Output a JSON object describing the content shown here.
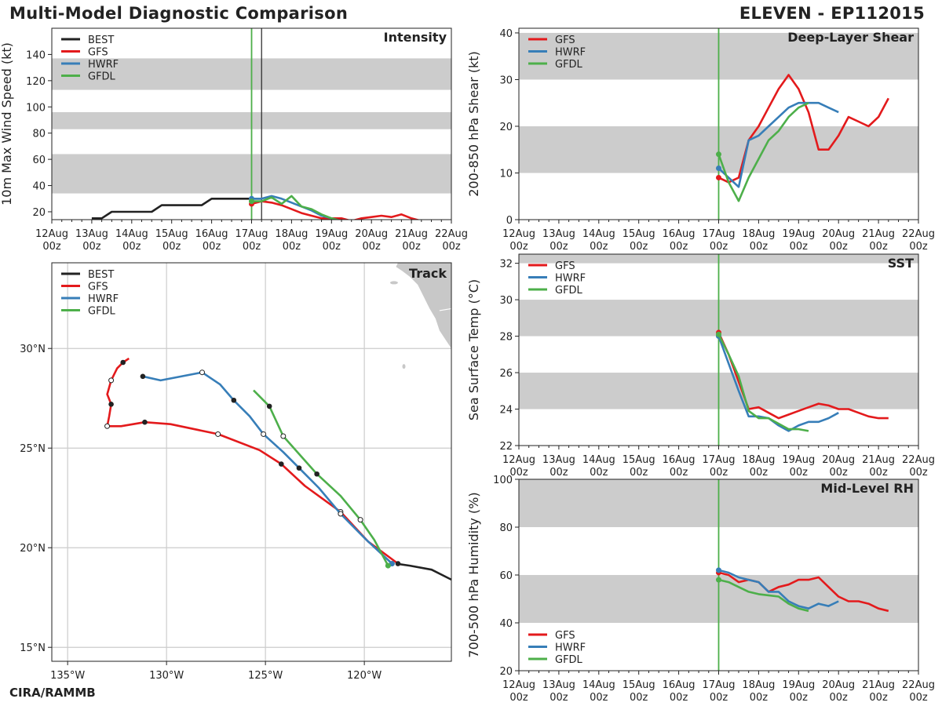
{
  "header": {
    "title": "Multi-Model Diagnostic Comparison",
    "storm": "ELEVEN - EP112015"
  },
  "footer": {
    "credit": "CIRA/RAMMB"
  },
  "colors": {
    "BEST": "#222222",
    "GFS": "#e31a1c",
    "HWRF": "#377eb8",
    "GFDL": "#4daf4a",
    "band": "#cccccc",
    "grid": "#cccccc",
    "land": "#c8c8c8"
  },
  "time_ticks": [
    "12Aug\n00z",
    "13Aug\n00z",
    "14Aug\n00z",
    "15Aug\n00z",
    "16Aug\n00z",
    "17Aug\n00z",
    "18Aug\n00z",
    "19Aug\n00z",
    "20Aug\n00z",
    "21Aug\n00z",
    "22Aug\n00z"
  ],
  "chart_data": [
    {
      "id": "intensity",
      "type": "line",
      "title": "Intensity",
      "ylabel": "10m Max Wind Speed (kt)",
      "xlim": [
        0,
        10
      ],
      "ylim": [
        14,
        160
      ],
      "yticks": [
        20,
        40,
        60,
        80,
        100,
        120,
        140
      ],
      "bands": [
        [
          34,
          64
        ],
        [
          83,
          96
        ],
        [
          113,
          137
        ]
      ],
      "vlines": [
        {
          "x": 5.0,
          "color": "GFDL"
        },
        {
          "x": 5.25,
          "color": "BEST"
        }
      ],
      "legend": [
        "BEST",
        "GFS",
        "HWRF",
        "GFDL"
      ],
      "series": [
        {
          "name": "BEST",
          "x": [
            1.0,
            1.25,
            1.5,
            1.75,
            2.0,
            2.25,
            2.5,
            2.75,
            3.0,
            3.25,
            3.5,
            3.75,
            4.0,
            4.25,
            4.5,
            4.75,
            5.0,
            5.25
          ],
          "y": [
            15,
            15,
            20,
            20,
            20,
            20,
            20,
            25,
            25,
            25,
            25,
            25,
            30,
            30,
            30,
            30,
            30,
            30
          ]
        },
        {
          "name": "GFS",
          "x": [
            5.0,
            5.25,
            5.5,
            5.75,
            6.0,
            6.25,
            6.5,
            6.75,
            7.0,
            7.25,
            7.5,
            7.75,
            8.0,
            8.25,
            8.5,
            8.75,
            9.0,
            9.25
          ],
          "y": [
            26,
            28,
            27,
            25,
            22,
            19,
            17,
            15,
            15,
            15,
            13,
            15,
            16,
            17,
            16,
            18,
            15,
            13
          ]
        },
        {
          "name": "HWRF",
          "x": [
            5.0,
            5.25,
            5.5,
            5.75,
            6.0,
            6.25,
            6.5,
            6.75,
            7.0,
            7.25
          ],
          "y": [
            30,
            30,
            32,
            30,
            27,
            24,
            21,
            17,
            15,
            13
          ]
        },
        {
          "name": "GFDL",
          "x": [
            5.0,
            5.25,
            5.5,
            5.75,
            6.0,
            6.25,
            6.5,
            6.75,
            7.0,
            7.25
          ],
          "y": [
            28,
            28,
            31,
            26,
            32,
            24,
            22,
            18,
            15,
            13
          ]
        }
      ]
    },
    {
      "id": "shear",
      "type": "line",
      "title": "Deep-Layer Shear",
      "ylabel": "200-850 hPa Shear (kt)",
      "xlim": [
        0,
        10
      ],
      "ylim": [
        0,
        41
      ],
      "yticks": [
        0,
        10,
        20,
        30,
        40
      ],
      "bands": [
        [
          10,
          20
        ],
        [
          30,
          40
        ]
      ],
      "vlines": [
        {
          "x": 5.0,
          "color": "GFDL"
        }
      ],
      "legend": [
        "GFS",
        "HWRF",
        "GFDL"
      ],
      "series": [
        {
          "name": "GFS",
          "x": [
            5.0,
            5.25,
            5.5,
            5.75,
            6.0,
            6.25,
            6.5,
            6.75,
            7.0,
            7.25,
            7.5,
            7.75,
            8.0,
            8.25,
            8.5,
            8.75,
            9.0,
            9.25
          ],
          "y": [
            9,
            8,
            9,
            17,
            20,
            24,
            28,
            31,
            28,
            23,
            15,
            15,
            18,
            22,
            21,
            20,
            22,
            26
          ]
        },
        {
          "name": "HWRF",
          "x": [
            5.0,
            5.25,
            5.5,
            5.75,
            6.0,
            6.25,
            6.5,
            6.75,
            7.0,
            7.25,
            7.5,
            7.75,
            8.0
          ],
          "y": [
            11,
            9,
            7,
            17,
            18,
            20,
            22,
            24,
            25,
            25,
            25,
            24,
            23
          ]
        },
        {
          "name": "GFDL",
          "x": [
            5.0,
            5.25,
            5.5,
            5.75,
            6.0,
            6.25,
            6.5,
            6.75,
            7.0,
            7.25
          ],
          "y": [
            14,
            8,
            4,
            9,
            13,
            17,
            19,
            22,
            24,
            25
          ]
        }
      ]
    },
    {
      "id": "sst",
      "type": "line",
      "title": "SST",
      "ylabel": "Sea Surface Temp (°C)",
      "xlim": [
        0,
        10
      ],
      "ylim": [
        22,
        32.5
      ],
      "yticks": [
        22,
        24,
        26,
        28,
        30,
        32
      ],
      "bands": [
        [
          24,
          26
        ],
        [
          28,
          30
        ],
        [
          32,
          33
        ]
      ],
      "vlines": [
        {
          "x": 5.0,
          "color": "GFDL"
        }
      ],
      "legend": [
        "GFS",
        "HWRF",
        "GFDL"
      ],
      "series": [
        {
          "name": "GFS",
          "x": [
            5.0,
            5.25,
            5.5,
            5.75,
            6.0,
            6.25,
            6.5,
            6.75,
            7.0,
            7.25,
            7.5,
            7.75,
            8.0,
            8.25,
            8.5,
            8.75,
            9.0,
            9.25
          ],
          "y": [
            28.2,
            27.0,
            25.5,
            24.0,
            24.1,
            23.8,
            23.5,
            23.7,
            23.9,
            24.1,
            24.3,
            24.2,
            24.0,
            24.0,
            23.8,
            23.6,
            23.5,
            23.5
          ]
        },
        {
          "name": "HWRF",
          "x": [
            5.0,
            5.25,
            5.5,
            5.75,
            6.0,
            6.25,
            6.5,
            6.75,
            7.0,
            7.25,
            7.5,
            7.75,
            8.0
          ],
          "y": [
            28.0,
            26.5,
            25.0,
            23.6,
            23.6,
            23.5,
            23.1,
            22.8,
            23.1,
            23.3,
            23.3,
            23.5,
            23.8
          ]
        },
        {
          "name": "GFDL",
          "x": [
            5.0,
            5.25,
            5.5,
            5.75,
            6.0,
            6.25,
            6.5,
            6.75,
            7.0,
            7.25
          ],
          "y": [
            28.1,
            27.0,
            25.8,
            23.9,
            23.5,
            23.5,
            23.2,
            22.9,
            22.9,
            22.8
          ]
        }
      ]
    },
    {
      "id": "rh",
      "type": "line",
      "title": "Mid-Level RH",
      "ylabel": "700-500 hPa Humidity (%)",
      "xlim": [
        0,
        10
      ],
      "ylim": [
        20,
        100
      ],
      "yticks": [
        20,
        40,
        60,
        80,
        100
      ],
      "bands": [
        [
          40,
          60
        ],
        [
          80,
          100
        ]
      ],
      "vlines": [
        {
          "x": 5.0,
          "color": "GFDL"
        }
      ],
      "legend": [
        "GFS",
        "HWRF",
        "GFDL"
      ],
      "series": [
        {
          "name": "GFS",
          "x": [
            5.0,
            5.25,
            5.5,
            5.75,
            6.0,
            6.25,
            6.5,
            6.75,
            7.0,
            7.25,
            7.5,
            7.75,
            8.0,
            8.25,
            8.5,
            8.75,
            9.0,
            9.25
          ],
          "y": [
            61,
            60,
            57,
            58,
            57,
            53,
            55,
            56,
            58,
            58,
            59,
            55,
            51,
            49,
            49,
            48,
            46,
            45
          ]
        },
        {
          "name": "HWRF",
          "x": [
            5.0,
            5.25,
            5.5,
            5.75,
            6.0,
            6.25,
            6.5,
            6.75,
            7.0,
            7.25,
            7.5,
            7.75,
            8.0
          ],
          "y": [
            62,
            61,
            59,
            58,
            57,
            53,
            53,
            49,
            47,
            46,
            48,
            47,
            49
          ]
        },
        {
          "name": "GFDL",
          "x": [
            5.0,
            5.25,
            5.5,
            5.75,
            6.0,
            6.25,
            6.5,
            6.75,
            7.0,
            7.25
          ],
          "y": [
            58,
            57,
            55,
            53,
            52,
            51.5,
            51,
            48,
            46,
            45
          ]
        }
      ]
    },
    {
      "id": "track",
      "type": "line",
      "title": "Track",
      "xlabel_ticks": [
        "135°W",
        "130°W",
        "125°W",
        "120°W"
      ],
      "x_tick_values": [
        -135,
        -130,
        -125,
        -120
      ],
      "ylabel_ticks": [
        "15°N",
        "20°N",
        "25°N",
        "30°N"
      ],
      "y_tick_values": [
        15,
        20,
        25,
        30
      ],
      "xlim": [
        -135.8,
        -115.6
      ],
      "ylim": [
        14.3,
        34.3
      ],
      "legend": [
        "BEST",
        "GFS",
        "HWRF",
        "GFDL"
      ],
      "series": [
        {
          "name": "BEST",
          "lon": [
            -115.6,
            -116.6,
            -117.7,
            -118.4
          ],
          "lat": [
            18.4,
            18.9,
            19.1,
            19.2
          ]
        },
        {
          "name": "GFS",
          "lon": [
            -118.3,
            -119.8,
            -121.2,
            -123.0,
            -124.2,
            -125.3,
            -127.4,
            -129.8,
            -131.1,
            -132.3,
            -133.0,
            -132.9,
            -132.8,
            -133.0,
            -132.8,
            -132.5,
            -132.2,
            -131.9
          ],
          "lat": [
            19.2,
            20.3,
            21.8,
            23.1,
            24.2,
            24.9,
            25.7,
            26.2,
            26.3,
            26.1,
            26.1,
            26.6,
            27.2,
            27.7,
            28.4,
            29.0,
            29.3,
            29.5
          ],
          "filled": [
            [
              -118.3,
              19.2
            ],
            [
              -124.2,
              24.2
            ],
            [
              -131.1,
              26.3
            ],
            [
              -132.8,
              27.2
            ],
            [
              -132.2,
              29.3
            ]
          ],
          "open": [
            [
              -121.2,
              21.8
            ],
            [
              -127.4,
              25.7
            ],
            [
              -133.0,
              26.1
            ],
            [
              -132.8,
              28.4
            ]
          ]
        },
        {
          "name": "HWRF",
          "lon": [
            -118.6,
            -119.9,
            -121.2,
            -122.3,
            -123.3,
            -124.1,
            -125.1,
            -125.8,
            -126.6,
            -127.3,
            -128.2,
            -130.3,
            -131.2
          ],
          "lat": [
            19.2,
            20.4,
            21.7,
            23.0,
            24.0,
            24.8,
            25.7,
            26.6,
            27.4,
            28.2,
            28.8,
            28.4,
            28.6
          ],
          "filled": [
            [
              -118.6,
              19.2
            ],
            [
              -123.3,
              24.0
            ],
            [
              -126.6,
              27.4
            ],
            [
              -131.2,
              28.6
            ]
          ],
          "open": [
            [
              -121.2,
              21.7
            ],
            [
              -125.1,
              25.7
            ],
            [
              -128.2,
              28.8
            ]
          ]
        },
        {
          "name": "GFDL",
          "lon": [
            -118.8,
            -119.5,
            -120.2,
            -121.2,
            -122.4,
            -123.3,
            -124.1,
            -124.8,
            -125.6
          ],
          "lat": [
            19.1,
            20.4,
            21.4,
            22.6,
            23.7,
            24.7,
            25.6,
            27.1,
            27.9
          ],
          "filled": [
            [
              -118.8,
              19.1
            ],
            [
              -122.4,
              23.7
            ],
            [
              -124.8,
              27.1
            ]
          ],
          "open": [
            [
              -120.2,
              21.4
            ],
            [
              -124.1,
              25.6
            ]
          ]
        }
      ]
    }
  ]
}
